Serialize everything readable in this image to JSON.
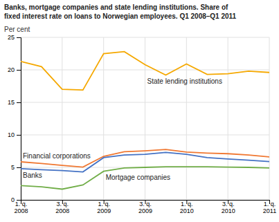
{
  "chart_data": {
    "type": "line",
    "title": "Banks, mortgage companies and state lending institutions. Share of\nfixed interest rate on loans to Norwegian employees. Q1 2008–Q1 2011",
    "ylabel": "Per cent",
    "categories": [
      "1. q.\n2008",
      null,
      "3. q.\n2008",
      null,
      "1. q.\n2009",
      null,
      "3. q.\n2009",
      null,
      "1. q.\n2010",
      null,
      "3. q.\n2010",
      null,
      "1. q.\n2011"
    ],
    "series": [
      {
        "name": "State lending institutions",
        "color": "#F5A800",
        "values": [
          21.3,
          20.5,
          17.0,
          16.9,
          22.5,
          22.8,
          20.8,
          19.2,
          20.9,
          19.3,
          19.4,
          19.8,
          19.6
        ]
      },
      {
        "name": "Financial corporations",
        "color": "#F07832",
        "values": [
          5.85,
          5.6,
          5.3,
          5.05,
          6.7,
          7.4,
          7.55,
          7.75,
          7.35,
          7.2,
          7.1,
          6.9,
          6.6
        ]
      },
      {
        "name": "Banks",
        "color": "#4472C4",
        "values": [
          4.8,
          4.65,
          4.5,
          4.3,
          6.5,
          6.9,
          7.0,
          7.3,
          7.0,
          6.5,
          6.3,
          6.1,
          5.9
        ]
      },
      {
        "name": "Mortgage companies",
        "color": "#70AD47",
        "values": [
          2.2,
          2.0,
          1.65,
          2.3,
          4.4,
          4.9,
          5.0,
          5.1,
          5.1,
          5.1,
          5.05,
          5.0,
          4.9
        ]
      }
    ],
    "ylim": [
      0,
      25
    ],
    "yticks": [
      0,
      5,
      10,
      15,
      20,
      25
    ],
    "grid": true
  }
}
